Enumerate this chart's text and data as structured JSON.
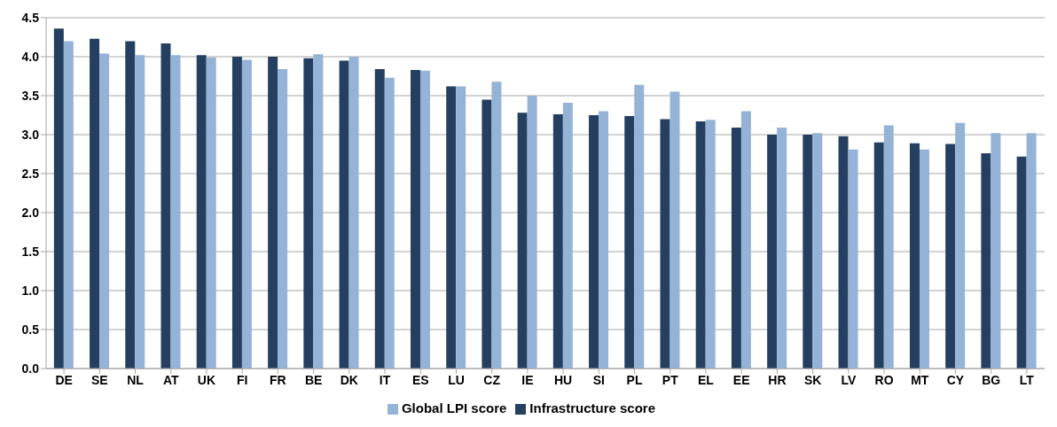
{
  "chart_data": {
    "type": "bar",
    "categories": [
      "DE",
      "SE",
      "NL",
      "AT",
      "UK",
      "FI",
      "FR",
      "BE",
      "DK",
      "IT",
      "ES",
      "LU",
      "CZ",
      "IE",
      "HU",
      "SI",
      "PL",
      "PT",
      "EL",
      "EE",
      "HR",
      "SK",
      "LV",
      "RO",
      "MT",
      "CY",
      "BG",
      "LT"
    ],
    "series": [
      {
        "name": "Infrastructure score",
        "color": "#243f60",
        "values": [
          4.36,
          4.23,
          4.2,
          4.17,
          4.02,
          4.0,
          4.0,
          3.98,
          3.95,
          3.84,
          3.83,
          3.62,
          3.45,
          3.28,
          3.26,
          3.25,
          3.24,
          3.2,
          3.17,
          3.09,
          3.0,
          3.0,
          2.98,
          2.9,
          2.89,
          2.88,
          2.76,
          2.72
        ]
      },
      {
        "name": "Global LPI score",
        "color": "#95b3d7",
        "values": [
          4.2,
          4.04,
          4.02,
          4.02,
          3.99,
          3.96,
          3.84,
          4.03,
          4.0,
          3.73,
          3.82,
          3.62,
          3.68,
          3.5,
          3.41,
          3.3,
          3.64,
          3.55,
          3.19,
          3.3,
          3.09,
          3.02,
          2.81,
          3.12,
          2.81,
          3.15,
          3.02,
          3.02
        ]
      }
    ],
    "ylim": [
      0,
      4.5
    ],
    "yticks": [
      {
        "value": 0,
        "label": "0.0"
      },
      {
        "value": 0.5,
        "label": "0.5"
      },
      {
        "value": 1,
        "label": "1.0"
      },
      {
        "value": 1.5,
        "label": "1.5"
      },
      {
        "value": 2,
        "label": "2.0"
      },
      {
        "value": 2.5,
        "label": "2.5"
      },
      {
        "value": 3,
        "label": "3.0"
      },
      {
        "value": 3.5,
        "label": "3.5"
      },
      {
        "value": 4,
        "label": "4.0"
      },
      {
        "value": 4.5,
        "label": "4.5"
      }
    ],
    "grid": "y",
    "legend": "bottom"
  }
}
